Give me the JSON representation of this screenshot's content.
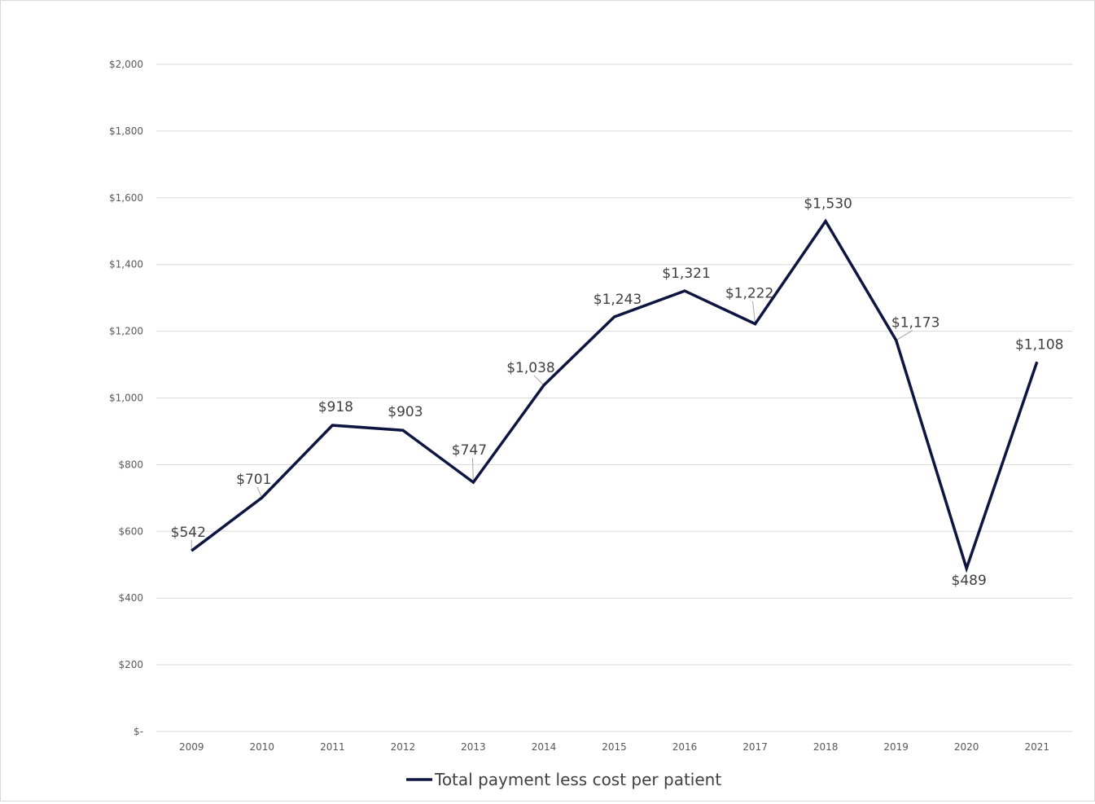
{
  "colors": {
    "series": "#0e1540",
    "gridline": "#d9d9d9",
    "axis_text": "#595959",
    "label_text": "#404040",
    "leader_line": "#a6a6a6"
  },
  "chart_data": {
    "type": "line",
    "title": "",
    "xlabel": "",
    "ylabel": "",
    "x": [
      "2009",
      "2010",
      "2011",
      "2012",
      "2013",
      "2014",
      "2015",
      "2016",
      "2017",
      "2018",
      "2019",
      "2020",
      "2021"
    ],
    "series": [
      {
        "name": "Total payment less cost per patient",
        "values": [
          542,
          701,
          918,
          903,
          747,
          1038,
          1243,
          1321,
          1222,
          1530,
          1173,
          489,
          1108
        ],
        "labels": [
          "$542",
          "$701",
          "$918",
          "$903",
          "$747",
          "$1,038",
          "$1,243",
          "$1,321",
          "$1,222",
          "$1,530",
          "$1,173",
          "$489",
          "$1,108"
        ]
      }
    ],
    "ylim": [
      0,
      2000
    ],
    "y_ticks": [
      0,
      200,
      400,
      600,
      800,
      1000,
      1200,
      1400,
      1600,
      1800,
      2000
    ],
    "y_tick_labels": [
      "$-",
      "$200",
      "$400",
      "$600",
      "$800",
      "$1,000",
      "$1,200",
      "$1,400",
      "$1,600",
      "$1,800",
      "$2,000"
    ],
    "grid": true,
    "legend": "bottom"
  }
}
